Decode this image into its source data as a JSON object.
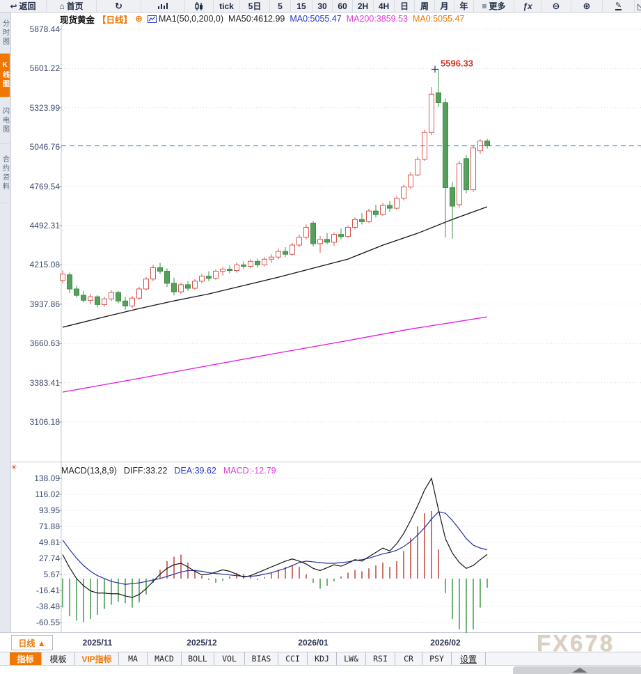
{
  "toolbar": {
    "items": [
      {
        "label": "返回",
        "icon": "back-arrow"
      },
      {
        "label": "首页",
        "icon": "home"
      },
      {
        "label": "",
        "icon": "refresh"
      },
      {
        "label": "",
        "icon": "bar-chart"
      },
      {
        "label": "",
        "icon": "candlestick"
      },
      {
        "label": "tick",
        "icon": ""
      },
      {
        "label": "5日",
        "icon": ""
      },
      {
        "label": "5",
        "icon": ""
      },
      {
        "label": "15",
        "icon": ""
      },
      {
        "label": "30",
        "icon": ""
      },
      {
        "label": "60",
        "icon": ""
      },
      {
        "label": "2H",
        "icon": ""
      },
      {
        "label": "4H",
        "icon": ""
      },
      {
        "label": "日",
        "icon": ""
      },
      {
        "label": "周",
        "icon": ""
      },
      {
        "label": "月",
        "icon": ""
      },
      {
        "label": "年",
        "icon": ""
      },
      {
        "label": "更多",
        "icon": "menu"
      },
      {
        "label": "ƒx",
        "icon": "fx"
      },
      {
        "label": "",
        "icon": "zoom-out"
      },
      {
        "label": "",
        "icon": "zoom-in"
      },
      {
        "label": "",
        "icon": "draw-pencil"
      },
      {
        "label": "",
        "icon": "triangle"
      }
    ]
  },
  "sidebar": {
    "items": [
      {
        "label": "分时图",
        "active": false
      },
      {
        "label": "K线图",
        "active": true
      },
      {
        "label": "闪电图",
        "active": false
      },
      {
        "label": "合约资料",
        "active": false
      }
    ]
  },
  "chart_header": {
    "symbol": "现货黄金",
    "period": "【日线】",
    "settings_plus": "⊕",
    "ma_group": "MA1(50,0,200,0)",
    "ma50": "MA50:4612.99",
    "ma0_blue": "MA0:5055.47",
    "ma200": "MA200:3859.53",
    "ma0_orange": "MA0:5055.47"
  },
  "macd_header": {
    "title": "MACD(13,8,9)",
    "diff": "DIFF:33.22",
    "dea": "DEA:39.62",
    "macd": "MACD:-12.79"
  },
  "bottom_bar": {
    "period_button": "日线 ▲",
    "watermark": "FX678"
  },
  "tabs": {
    "items": [
      {
        "label": "指标"
      },
      {
        "label": "模板"
      },
      {
        "label": "VIP指标"
      },
      {
        "label": "MA"
      },
      {
        "label": "MACD"
      },
      {
        "label": "BOLL"
      },
      {
        "label": "VOL"
      },
      {
        "label": "BIAS"
      },
      {
        "label": "CCI"
      },
      {
        "label": "KDJ"
      },
      {
        "label": "LW&"
      },
      {
        "label": "RSI"
      },
      {
        "label": "CR"
      },
      {
        "label": "PSY"
      },
      {
        "label": "设置"
      }
    ]
  },
  "colors": {
    "accent_orange": "#f07800",
    "up_red": "#d9544d",
    "down_green": "#55a05c",
    "down_green_stroke": "#3c8c46",
    "ma50_black": "#141414",
    "ma200_magenta": "#e316e3",
    "diff_black": "#141414",
    "dea_blue": "#22309e",
    "macd_bar_up": "#c0504a",
    "macd_bar_down": "#4f9e58",
    "price_line_blue": "#1f7fe8",
    "annotation_red": "#d03020",
    "grid": "#d8dae4",
    "panel_border": "#c6c9d2"
  },
  "chart_data": {
    "type": "candlestick+macd",
    "title": "现货黄金 日线 (Spot Gold Daily)",
    "price_axis": [
      5878.44,
      5601.22,
      5323.99,
      5046.76,
      4769.54,
      4492.31,
      4215.08,
      3937.86,
      3660.63,
      3383.41,
      3106.18
    ],
    "macd_axis": [
      138.09,
      116.02,
      93.95,
      71.88,
      49.81,
      27.74,
      5.67,
      -16.41,
      -38.48,
      -60.55
    ],
    "x_labels": [
      {
        "label": "2025/11",
        "i": 5
      },
      {
        "label": "2025/12",
        "i": 20
      },
      {
        "label": "2026/01",
        "i": 36
      },
      {
        "label": "2026/02",
        "i": 55
      }
    ],
    "last_price": 5055.47,
    "high_annotation": {
      "text": "5596.33",
      "value": 5596.33,
      "i": 54
    },
    "candles": [
      [
        4105,
        4175,
        4085,
        4150
      ],
      [
        4145,
        4160,
        4015,
        4045
      ],
      [
        4045,
        4070,
        3985,
        4000
      ],
      [
        4000,
        4030,
        3950,
        3965
      ],
      [
        3965,
        4010,
        3940,
        3990
      ],
      [
        3990,
        4000,
        3915,
        3935
      ],
      [
        3935,
        3990,
        3920,
        3975
      ],
      [
        3975,
        4035,
        3960,
        4020
      ],
      [
        4020,
        4030,
        3945,
        3960
      ],
      [
        3960,
        3990,
        3900,
        3925
      ],
      [
        3925,
        3995,
        3910,
        3980
      ],
      [
        3980,
        4060,
        3970,
        4045
      ],
      [
        4045,
        4130,
        4035,
        4115
      ],
      [
        4115,
        4215,
        4100,
        4195
      ],
      [
        4195,
        4230,
        4150,
        4170
      ],
      [
        4170,
        4190,
        4060,
        4085
      ],
      [
        4085,
        4125,
        4000,
        4025
      ],
      [
        4025,
        4090,
        4010,
        4075
      ],
      [
        4075,
        4100,
        4030,
        4050
      ],
      [
        4050,
        4115,
        4040,
        4100
      ],
      [
        4100,
        4150,
        4085,
        4135
      ],
      [
        4135,
        4170,
        4100,
        4120
      ],
      [
        4120,
        4185,
        4110,
        4170
      ],
      [
        4170,
        4200,
        4140,
        4185
      ],
      [
        4185,
        4210,
        4155,
        4175
      ],
      [
        4175,
        4230,
        4160,
        4215
      ],
      [
        4215,
        4240,
        4185,
        4205
      ],
      [
        4205,
        4255,
        4190,
        4240
      ],
      [
        4240,
        4260,
        4195,
        4215
      ],
      [
        4215,
        4270,
        4205,
        4255
      ],
      [
        4255,
        4290,
        4230,
        4270
      ],
      [
        4270,
        4330,
        4255,
        4310
      ],
      [
        4310,
        4340,
        4270,
        4290
      ],
      [
        4290,
        4370,
        4280,
        4355
      ],
      [
        4355,
        4430,
        4340,
        4410
      ],
      [
        4410,
        4500,
        4395,
        4480
      ],
      [
        4510,
        4525,
        4345,
        4365
      ],
      [
        4365,
        4420,
        4300,
        4395
      ],
      [
        4395,
        4440,
        4360,
        4375
      ],
      [
        4375,
        4445,
        4350,
        4430
      ],
      [
        4430,
        4470,
        4395,
        4415
      ],
      [
        4415,
        4495,
        4405,
        4480
      ],
      [
        4480,
        4550,
        4465,
        4535
      ],
      [
        4535,
        4580,
        4500,
        4520
      ],
      [
        4520,
        4610,
        4510,
        4595
      ],
      [
        4595,
        4640,
        4550,
        4570
      ],
      [
        4570,
        4650,
        4560,
        4635
      ],
      [
        4635,
        4665,
        4590,
        4615
      ],
      [
        4615,
        4700,
        4605,
        4685
      ],
      [
        4685,
        4780,
        4670,
        4765
      ],
      [
        4765,
        4870,
        4750,
        4850
      ],
      [
        4850,
        4980,
        4840,
        4960
      ],
      [
        4960,
        5170,
        4950,
        5150
      ],
      [
        5150,
        5470,
        5130,
        5420
      ],
      [
        5430,
        5596.33,
        5330,
        5360
      ],
      [
        5360,
        5390,
        4410,
        4760
      ],
      [
        4760,
        4800,
        4400,
        4630
      ],
      [
        4640,
        4950,
        4620,
        4930
      ],
      [
        4965,
        4990,
        4720,
        4745
      ],
      [
        4745,
        5060,
        4730,
        5040
      ],
      [
        5020,
        5100,
        5000,
        5090
      ],
      [
        5090,
        5105,
        5035,
        5055.47
      ]
    ],
    "ma50": [
      [
        0,
        3775
      ],
      [
        6,
        3848
      ],
      [
        11,
        3907
      ],
      [
        16,
        3961
      ],
      [
        21,
        4010
      ],
      [
        26,
        4069
      ],
      [
        31,
        4128
      ],
      [
        36,
        4192
      ],
      [
        41,
        4256
      ],
      [
        46,
        4354
      ],
      [
        51,
        4438
      ],
      [
        56,
        4536
      ],
      [
        61,
        4625
      ]
    ],
    "ma200": [
      [
        0,
        3317
      ],
      [
        10,
        3405
      ],
      [
        20,
        3495
      ],
      [
        30,
        3585
      ],
      [
        40,
        3672
      ],
      [
        50,
        3762
      ],
      [
        61,
        3848
      ]
    ],
    "macd": {
      "diff": [
        33,
        15,
        0,
        -10,
        -17,
        -20,
        -20,
        -21,
        -21,
        -24,
        -26,
        -22,
        -14,
        -4,
        6,
        14,
        19,
        21,
        16,
        10,
        5,
        6,
        9,
        12,
        10,
        6,
        2,
        4,
        8,
        12,
        16,
        20,
        24,
        27,
        24,
        20,
        14,
        11,
        15,
        19,
        17,
        21,
        26,
        24,
        30,
        36,
        42,
        38,
        48,
        62,
        80,
        100,
        122,
        138.09,
        95,
        55,
        35,
        22,
        14,
        18,
        26,
        33.22
      ],
      "dea": [
        53,
        40,
        28,
        18,
        10,
        4,
        0,
        -4,
        -6,
        -8,
        -7,
        -6,
        -4,
        -2,
        0,
        3,
        6,
        9,
        11,
        11,
        10,
        8,
        7,
        6,
        5,
        4,
        3,
        3,
        4,
        6,
        8,
        11,
        14,
        18,
        22,
        24,
        23,
        22,
        21,
        21,
        22,
        23,
        25,
        26,
        28,
        31,
        34,
        36,
        39,
        44,
        51,
        60,
        70,
        82,
        92,
        90,
        80,
        68,
        55,
        46,
        42,
        39.62
      ],
      "bars": [
        -40,
        -52,
        -58,
        -60,
        -56,
        -50,
        -42,
        -36,
        -32,
        -34,
        -40,
        -33,
        -22,
        -6,
        12,
        24,
        30,
        33,
        22,
        12,
        4,
        -2,
        -6,
        -3,
        3,
        8,
        6,
        3,
        -2,
        2,
        8,
        12,
        16,
        19,
        16,
        6,
        -6,
        -14,
        -10,
        -4,
        3,
        8,
        12,
        10,
        14,
        18,
        22,
        16,
        24,
        38,
        56,
        72,
        90,
        93,
        40,
        -20,
        -56,
        -70,
        -76,
        -70,
        -40,
        -12.79
      ]
    }
  }
}
